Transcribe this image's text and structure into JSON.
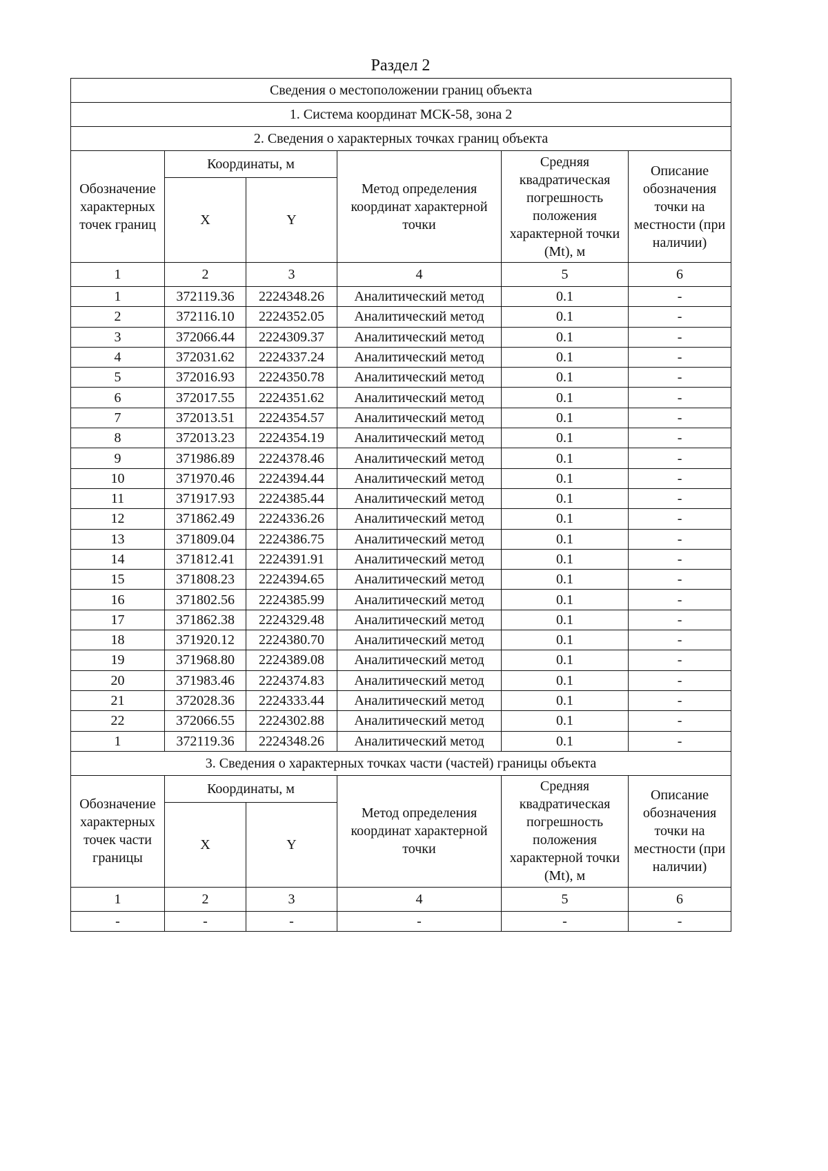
{
  "title": "Раздел 2",
  "section_header": "Сведения о местоположении границ объекта",
  "coord_system": "1. Система координат МСК-58, зона 2",
  "part2": {
    "title": "2. Сведения о характерных точках границ объекта",
    "headers": {
      "designation": "Обозначение характерных точек границ",
      "coords": "Координаты, м",
      "x": "X",
      "y": "Y",
      "method": "Метод определения координат характерной точки",
      "error": "Средняя квадратическая погрешность положения характерной точки (Mt), м",
      "description": "Описание обозначения точки на местности (при наличии)"
    },
    "col_numbers": [
      "1",
      "2",
      "3",
      "4",
      "5",
      "6"
    ],
    "rows": [
      [
        "1",
        "372119.36",
        "2224348.26",
        "Аналитический метод",
        "0.1",
        "-"
      ],
      [
        "2",
        "372116.10",
        "2224352.05",
        "Аналитический метод",
        "0.1",
        "-"
      ],
      [
        "3",
        "372066.44",
        "2224309.37",
        "Аналитический метод",
        "0.1",
        "-"
      ],
      [
        "4",
        "372031.62",
        "2224337.24",
        "Аналитический метод",
        "0.1",
        "-"
      ],
      [
        "5",
        "372016.93",
        "2224350.78",
        "Аналитический метод",
        "0.1",
        "-"
      ],
      [
        "6",
        "372017.55",
        "2224351.62",
        "Аналитический метод",
        "0.1",
        "-"
      ],
      [
        "7",
        "372013.51",
        "2224354.57",
        "Аналитический метод",
        "0.1",
        "-"
      ],
      [
        "8",
        "372013.23",
        "2224354.19",
        "Аналитический метод",
        "0.1",
        "-"
      ],
      [
        "9",
        "371986.89",
        "2224378.46",
        "Аналитический метод",
        "0.1",
        "-"
      ],
      [
        "10",
        "371970.46",
        "2224394.44",
        "Аналитический метод",
        "0.1",
        "-"
      ],
      [
        "11",
        "371917.93",
        "2224385.44",
        "Аналитический метод",
        "0.1",
        "-"
      ],
      [
        "12",
        "371862.49",
        "2224336.26",
        "Аналитический метод",
        "0.1",
        "-"
      ],
      [
        "13",
        "371809.04",
        "2224386.75",
        "Аналитический метод",
        "0.1",
        "-"
      ],
      [
        "14",
        "371812.41",
        "2224391.91",
        "Аналитический метод",
        "0.1",
        "-"
      ],
      [
        "15",
        "371808.23",
        "2224394.65",
        "Аналитический метод",
        "0.1",
        "-"
      ],
      [
        "16",
        "371802.56",
        "2224385.99",
        "Аналитический метод",
        "0.1",
        "-"
      ],
      [
        "17",
        "371862.38",
        "2224329.48",
        "Аналитический метод",
        "0.1",
        "-"
      ],
      [
        "18",
        "371920.12",
        "2224380.70",
        "Аналитический метод",
        "0.1",
        "-"
      ],
      [
        "19",
        "371968.80",
        "2224389.08",
        "Аналитический метод",
        "0.1",
        "-"
      ],
      [
        "20",
        "371983.46",
        "2224374.83",
        "Аналитический метод",
        "0.1",
        "-"
      ],
      [
        "21",
        "372028.36",
        "2224333.44",
        "Аналитический метод",
        "0.1",
        "-"
      ],
      [
        "22",
        "372066.55",
        "2224302.88",
        "Аналитический метод",
        "0.1",
        "-"
      ],
      [
        "1",
        "372119.36",
        "2224348.26",
        "Аналитический метод",
        "0.1",
        "-"
      ]
    ]
  },
  "part3": {
    "title": "3. Сведения о характерных точках части (частей) границы объекта",
    "headers": {
      "designation": "Обозначение характерных точек части границы",
      "coords": "Координаты, м",
      "x": "X",
      "y": "Y",
      "method": "Метод определения координат характерной точки",
      "error": "Средняя квадратическая погрешность положения характерной точки (Mt), м",
      "description": "Описание обозначения точки на местности (при наличии)"
    },
    "col_numbers": [
      "1",
      "2",
      "3",
      "4",
      "5",
      "6"
    ],
    "rows": [
      [
        "-",
        "-",
        "-",
        "-",
        "-",
        "-"
      ]
    ]
  }
}
